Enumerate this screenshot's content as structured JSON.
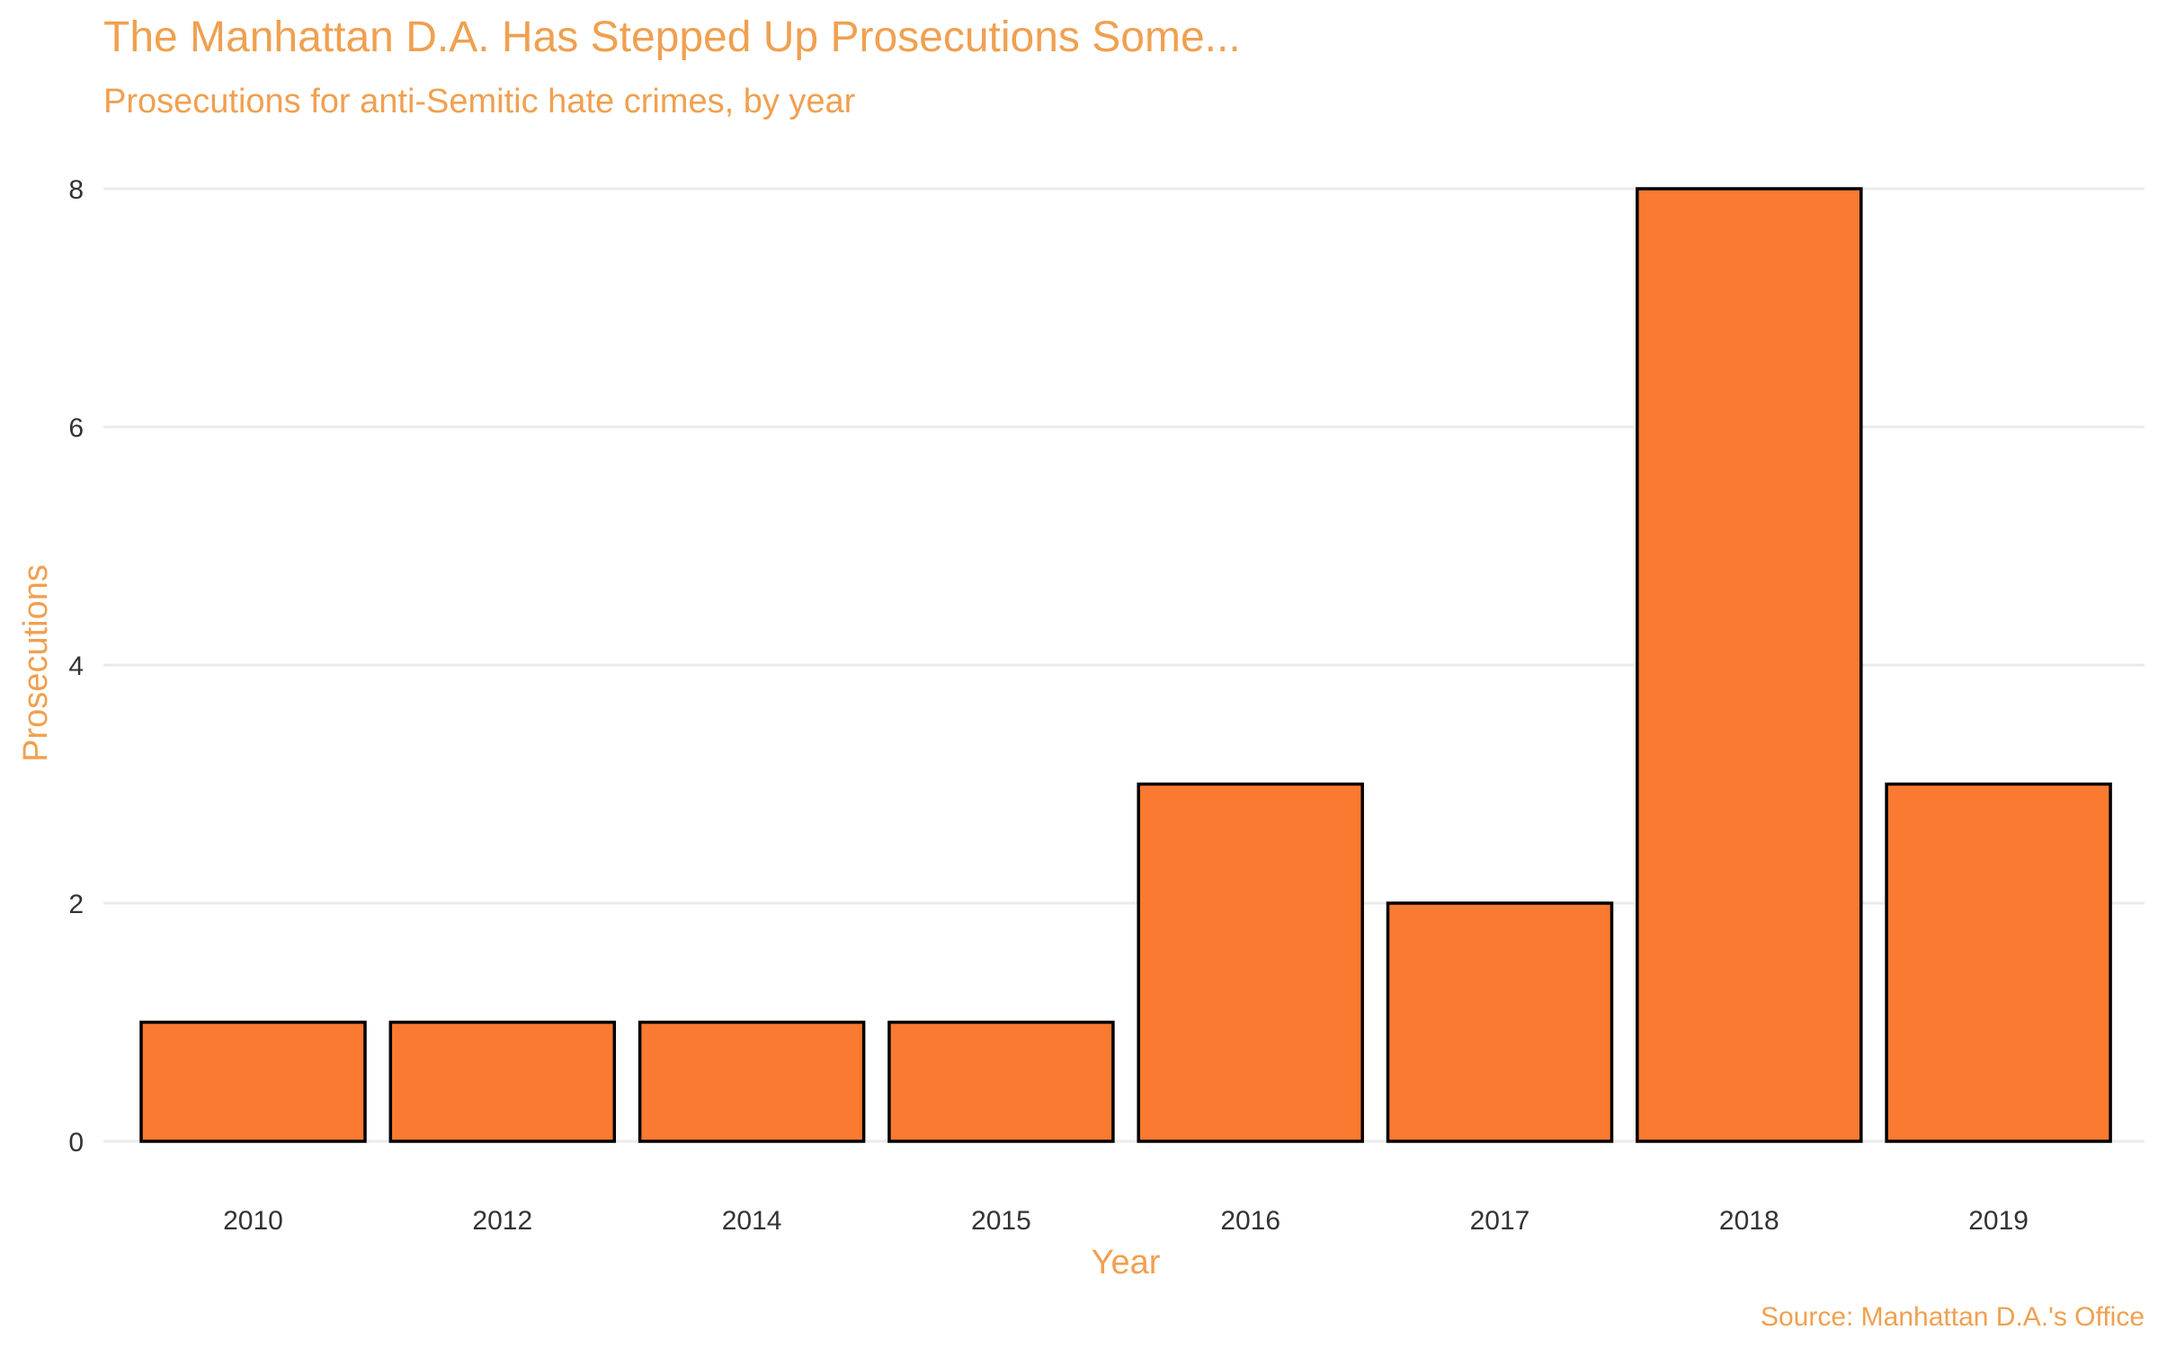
{
  "chart_data": {
    "type": "bar",
    "title": "The Manhattan D.A. Has Stepped Up Prosecutions Some...",
    "subtitle": "Prosecutions for anti-Semitic hate crimes, by year",
    "xlabel": "Year",
    "ylabel": "Prosecutions",
    "caption": "Source: Manhattan D.A.'s Office",
    "categories": [
      "2010",
      "2012",
      "2014",
      "2015",
      "2016",
      "2017",
      "2018",
      "2019"
    ],
    "values": [
      1,
      1,
      1,
      1,
      3,
      2,
      8,
      3
    ],
    "ylim": [
      0,
      8
    ],
    "yticks": [
      0,
      2,
      4,
      6,
      8
    ],
    "grid": "horizontal",
    "legend": "none",
    "colors": {
      "bar_fill": "#F97A30",
      "bar_stroke": "#000000",
      "text_accent": "#F0A050",
      "tick_text": "#333333",
      "gridline": "#EBEBEB"
    }
  }
}
